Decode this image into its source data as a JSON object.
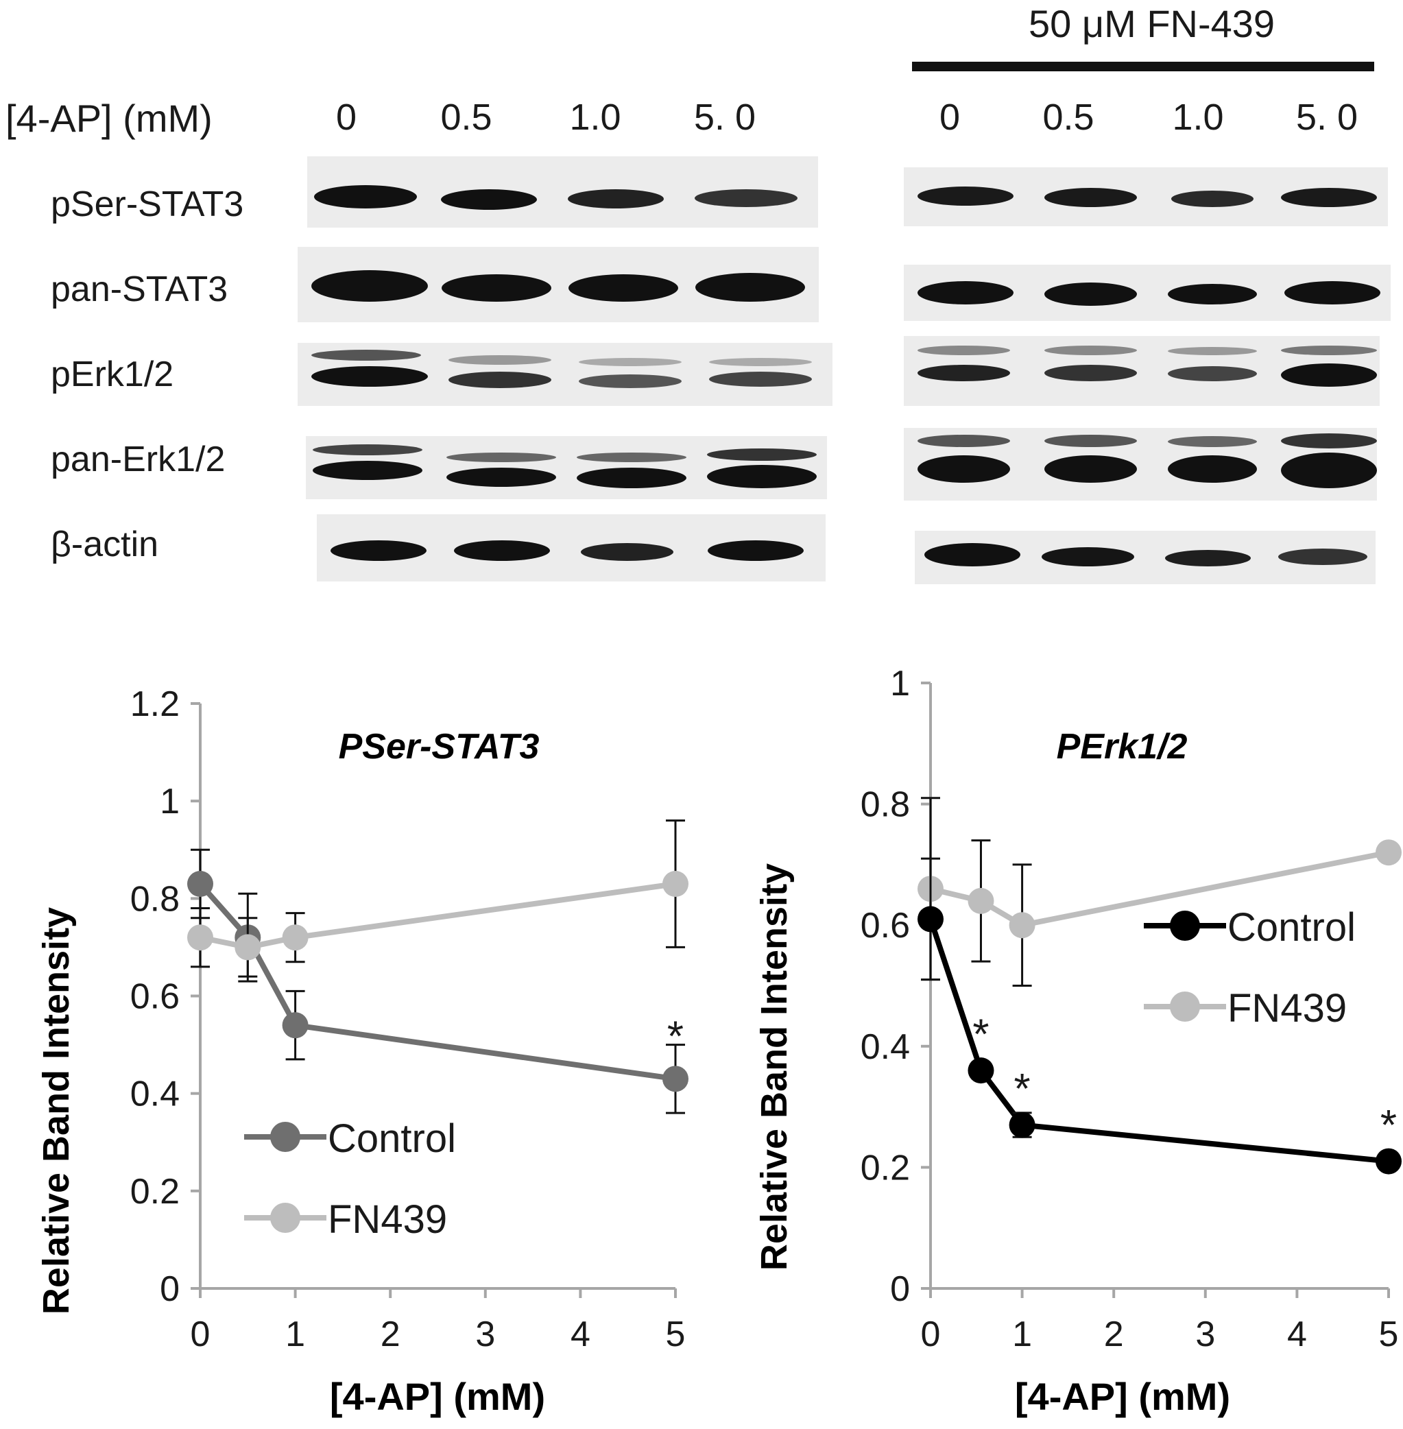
{
  "header": {
    "treatment_label": "50 μM FN-439",
    "conc_axis_label": "[4-AP] (mM)",
    "left_conc": [
      "0",
      "0.5",
      "1.0",
      "5. 0"
    ],
    "right_conc": [
      "0",
      "0.5",
      "1.0",
      "5. 0"
    ]
  },
  "blot_rows": [
    "pSer-STAT3",
    "pan-STAT3",
    "pErk1/2",
    "pan-Erk1/2",
    "β-actin"
  ],
  "colors": {
    "control_left": "#6f6f6f",
    "control_right": "#000000",
    "fn439": "#bdbdbd",
    "axis": "#a6a6a6"
  },
  "chart_data": [
    {
      "type": "line",
      "title": "PSer-STAT3",
      "xlabel": "[4-AP] (mM)",
      "ylabel": "Relative Band Intensity",
      "xlim": [
        0,
        5
      ],
      "ylim": [
        0,
        1.2
      ],
      "xticks": [
        "0",
        "1",
        "2",
        "3",
        "4",
        "5"
      ],
      "yticks": [
        "0",
        "0.2",
        "0.4",
        "0.6",
        "0.8",
        "1",
        "1.2"
      ],
      "legend": "lower-left",
      "series": [
        {
          "name": "Control",
          "color": "#6f6f6f",
          "x": [
            0,
            0.5,
            1,
            5
          ],
          "y": [
            0.83,
            0.72,
            0.54,
            0.43
          ],
          "err": [
            0.07,
            0.09,
            0.07,
            0.07
          ]
        },
        {
          "name": "FN439",
          "color": "#bdbdbd",
          "x": [
            0,
            0.5,
            1,
            5
          ],
          "y": [
            0.72,
            0.7,
            0.72,
            0.83
          ],
          "err": [
            0.06,
            0.06,
            0.05,
            0.13
          ]
        }
      ],
      "annotations": [
        {
          "text": "*",
          "x": 5,
          "y": 0.53
        }
      ]
    },
    {
      "type": "line",
      "title": "PErk1/2",
      "xlabel": "[4-AP] (mM)",
      "ylabel": "Relative Band Intensity",
      "xlim": [
        0,
        5
      ],
      "ylim": [
        0,
        1
      ],
      "xticks": [
        "0",
        "1",
        "2",
        "3",
        "4",
        "5"
      ],
      "yticks": [
        "0",
        "0.2",
        "0.4",
        "0.6",
        "0.8",
        "1"
      ],
      "legend": "upper-right",
      "series": [
        {
          "name": "Control",
          "color": "#000000",
          "x": [
            0,
            0.55,
            1,
            5
          ],
          "y": [
            0.61,
            0.36,
            0.27,
            0.21
          ],
          "err": [
            0.1,
            0.01,
            0.02,
            0.01
          ]
        },
        {
          "name": "FN439",
          "color": "#bdbdbd",
          "x": [
            0,
            0.55,
            1,
            5
          ],
          "y": [
            0.66,
            0.64,
            0.6,
            0.72
          ],
          "err": [
            0.15,
            0.1,
            0.1,
            0.01
          ]
        }
      ],
      "annotations": [
        {
          "text": "*",
          "x": 0.55,
          "y": 0.43
        },
        {
          "text": "*",
          "x": 1,
          "y": 0.34
        },
        {
          "text": "*",
          "x": 5,
          "y": 0.28
        }
      ]
    }
  ]
}
